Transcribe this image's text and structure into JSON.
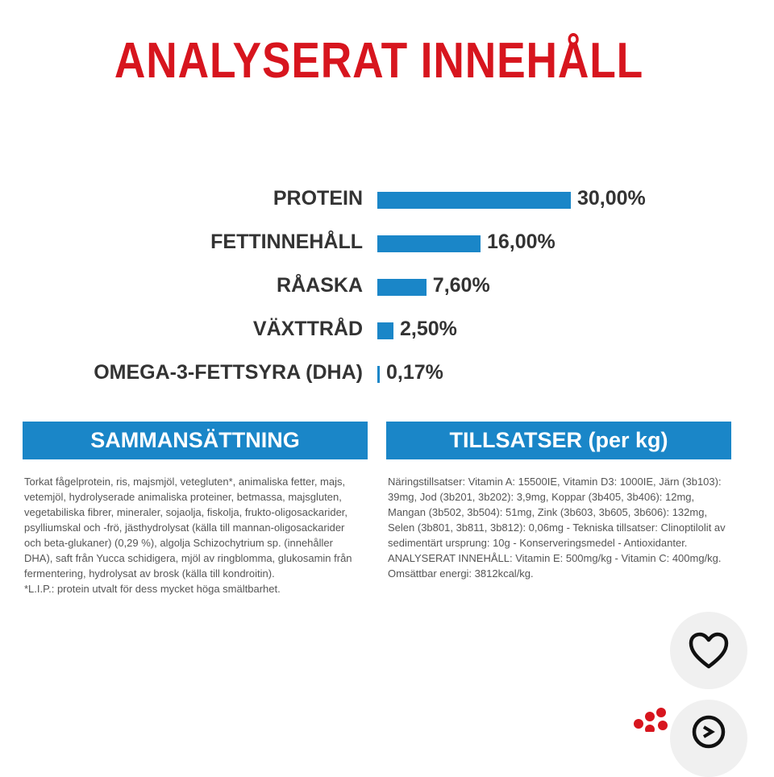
{
  "title": "ANALYSERAT INNEHÅLL",
  "nutrients": [
    {
      "label": "PROTEIN",
      "value_text": "30,00%",
      "value": 30.0
    },
    {
      "label": "FETTINNEHÅLL",
      "value_text": "16,00%",
      "value": 16.0
    },
    {
      "label": "RÅASKA",
      "value_text": "7,60%",
      "value": 7.6
    },
    {
      "label": "VÄXTTRÅD",
      "value_text": "2,50%",
      "value": 2.5
    },
    {
      "label": "OMEGA-3-FETTSYRA (DHA)",
      "value_text": "0,17%",
      "value": 0.17
    }
  ],
  "composition": {
    "header": "SAMMANSÄTTNING",
    "text": "Torkat fågelprotein, ris, majsmjöl, vetegluten*, animaliska fetter, majs, vetemjöl, hydrolyserade animaliska proteiner, betmassa, majsgluten, vegetabiliska fibrer, mineraler, sojaolja, fiskolja, frukto-oligosackarider, psylliumskal och -frö, jästhydrolysat (källa till mannan-oligosackarider och beta-glukaner) (0,29 %), algolja Schizochytrium sp. (innehåller DHA), saft från Yucca schidigera, mjöl av ringblomma, glukosamin från fermentering, hydrolysat av brosk (källa till kondroitin).",
    "footnote": "*L.I.P.: protein utvalt för dess mycket höga smältbarhet."
  },
  "additives": {
    "header": "TILLSATSER (per kg)",
    "text": "Näringstillsatser: Vitamin A: 15500IE, Vitamin D3: 1000IE, Järn (3b103): 39mg, Jod (3b201, 3b202): 3,9mg, Koppar (3b405, 3b406): 12mg, Mangan (3b502, 3b504): 51mg, Zink (3b603, 3b605, 3b606): 132mg, Selen (3b801, 3b811, 3b812): 0,06mg - Tekniska tillsatser: Clinoptilolit av sedimentärt ursprung: 10g - Konserveringsmedel - Antioxidanter. ANALYSERAT INNEHÅLL: Vitamin E: 500mg/kg - Vitamin C: 400mg/kg. Omsättbar energi: 3812kcal/kg."
  },
  "actions": {
    "favorite_icon": "heart-icon",
    "second_icon": "circle-arrow-icon"
  },
  "colors": {
    "title": "#d7151e",
    "bar": "#1a86c8",
    "header_bg": "#1a86c8",
    "logo": "#d7151e"
  }
}
